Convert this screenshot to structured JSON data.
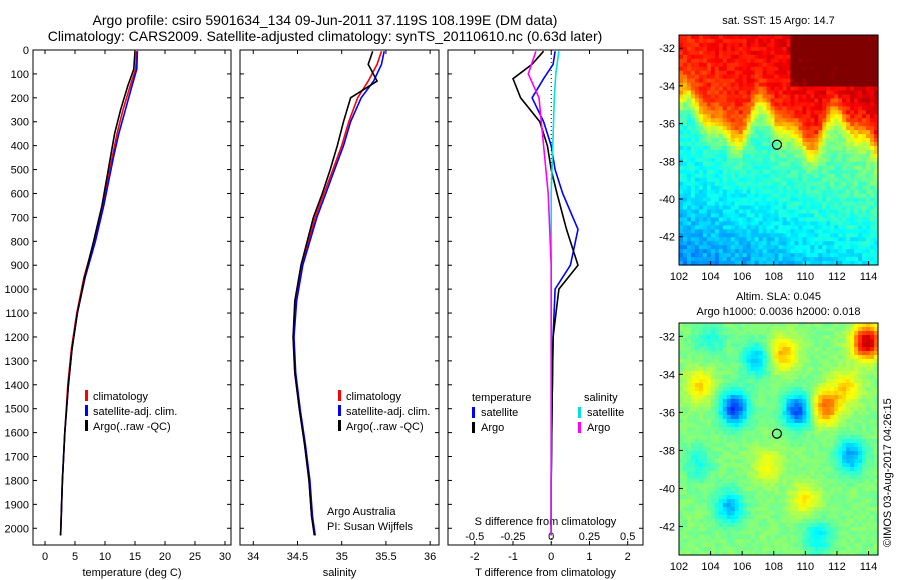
{
  "header": {
    "line1": "Argo profile: csiro 5901634_134 09-Jun-2011 37.119S 108.199E (DM data)",
    "line2": "Climatology: CARS2009. Satellite-adjusted climatology: synTS_20110610.nc (0.63d later)"
  },
  "footer": {
    "stamp": "©IMOS 03-Aug-2017 04:26:15"
  },
  "chart_data": [
    {
      "type": "line",
      "panel": "temperature",
      "xlabel": "temperature (deg C)",
      "ylabel": "",
      "xlim": [
        -2,
        31
      ],
      "ylim": [
        2070,
        0
      ],
      "xticks": [
        0,
        5,
        10,
        15,
        20,
        25,
        30
      ],
      "yticks": [
        0,
        100,
        200,
        300,
        400,
        500,
        600,
        700,
        800,
        900,
        1000,
        1100,
        1200,
        1300,
        1400,
        1500,
        1600,
        1700,
        1800,
        1900,
        2000
      ],
      "legend": [
        "climatology",
        "satellite-adj. clim.",
        "Argo(..raw -QC)"
      ],
      "legend_position": "lower-right",
      "series": [
        {
          "name": "climatology",
          "color": "#ff0000",
          "x": [
            15.3,
            15.1,
            14.2,
            13.0,
            12.0,
            11.2,
            10.4,
            9.6,
            8.2,
            6.5,
            5.3,
            4.4,
            3.8,
            3.3,
            2.9,
            2.6
          ],
          "y": [
            5,
            80,
            150,
            250,
            350,
            450,
            550,
            650,
            800,
            950,
            1100,
            1250,
            1400,
            1600,
            1800,
            2030
          ]
        },
        {
          "name": "satellite-adj. clim.",
          "color": "#0000ff",
          "x": [
            15.4,
            15.3,
            14.5,
            13.4,
            12.3,
            11.4,
            10.6,
            9.8,
            8.4,
            6.7,
            5.4,
            4.5,
            3.9,
            3.3,
            2.9,
            2.6
          ],
          "y": [
            5,
            80,
            150,
            250,
            350,
            450,
            550,
            650,
            800,
            950,
            1100,
            1250,
            1400,
            1600,
            1800,
            2030
          ]
        },
        {
          "name": "Argo(..raw -QC)",
          "color": "#000000",
          "x": [
            15.0,
            14.8,
            13.8,
            12.6,
            11.6,
            10.9,
            10.2,
            9.5,
            8.1,
            6.6,
            5.4,
            4.5,
            3.9,
            3.3,
            2.9,
            2.6
          ],
          "y": [
            5,
            80,
            150,
            250,
            350,
            450,
            550,
            650,
            800,
            950,
            1100,
            1250,
            1400,
            1600,
            1800,
            2030
          ]
        }
      ]
    },
    {
      "type": "line",
      "panel": "salinity",
      "xlabel": "salinity",
      "ylabel": "",
      "xlim": [
        33.85,
        36.1
      ],
      "ylim": [
        2070,
        0
      ],
      "xticks": [
        34,
        34.5,
        35,
        35.5,
        36
      ],
      "xticklabels": [
        "34",
        "34.5",
        "35",
        "35.5",
        "36"
      ],
      "legend": [
        "climatology",
        "satellite-adj. clim.",
        "Argo(..raw -QC)"
      ],
      "legend_position": "lower-right",
      "annotation": [
        "Argo Australia",
        "PI: Susan Wijffels"
      ],
      "series": [
        {
          "name": "climatology",
          "color": "#ff0000",
          "x": [
            35.45,
            35.4,
            35.3,
            35.18,
            35.08,
            35.0,
            34.9,
            34.8,
            34.7,
            34.55,
            34.48,
            34.45,
            34.47,
            34.52,
            34.58,
            34.63,
            34.66,
            34.7
          ],
          "y": [
            5,
            60,
            130,
            200,
            300,
            400,
            500,
            600,
            700,
            900,
            1050,
            1200,
            1350,
            1500,
            1650,
            1800,
            1950,
            2030
          ]
        },
        {
          "name": "satellite-adj. clim.",
          "color": "#0000ff",
          "x": [
            35.48,
            35.45,
            35.36,
            35.22,
            35.1,
            35.02,
            34.92,
            34.82,
            34.72,
            34.56,
            34.49,
            34.46,
            34.48,
            34.53,
            34.59,
            34.64,
            34.67,
            34.7
          ],
          "y": [
            5,
            60,
            130,
            200,
            300,
            400,
            500,
            600,
            700,
            900,
            1050,
            1200,
            1350,
            1500,
            1650,
            1800,
            1950,
            2030
          ]
        },
        {
          "name": "Argo(..raw -QC)",
          "color": "#000000",
          "x": [
            35.35,
            35.3,
            35.4,
            35.1,
            35.02,
            34.95,
            34.87,
            34.78,
            34.68,
            34.54,
            34.47,
            34.45,
            34.47,
            34.52,
            34.58,
            34.63,
            34.66,
            34.69
          ],
          "y": [
            5,
            60,
            130,
            200,
            300,
            400,
            500,
            600,
            700,
            900,
            1050,
            1200,
            1350,
            1500,
            1650,
            1800,
            1950,
            2030
          ]
        }
      ]
    },
    {
      "type": "line",
      "panel": "differences",
      "xlabel": "T difference from climatology",
      "xlabel2": "S difference from climatology",
      "xlim": [
        -2.7,
        2.4
      ],
      "ylim": [
        2070,
        0
      ],
      "xticks": [
        -2,
        -1,
        0,
        1,
        2
      ],
      "xticks2": [
        -0.5,
        -0.25,
        0,
        0.25,
        0.5
      ],
      "xticklabels2": [
        "-0.5",
        "-0.25",
        "0",
        "0.25",
        "0.5"
      ],
      "legend_groups": [
        {
          "heading": "temperature",
          "items": [
            {
              "name": "satellite",
              "color": "#0000ff"
            },
            {
              "name": "Argo",
              "color": "#000000"
            }
          ]
        },
        {
          "heading": "salinity",
          "items": [
            {
              "name": "satellite",
              "color": "#00e0e0"
            },
            {
              "name": "Argo",
              "color": "#ff00ff"
            }
          ]
        }
      ],
      "series": [
        {
          "name": "temperature satellite",
          "color": "#0000ff",
          "x": [
            0.1,
            0.05,
            -0.2,
            -0.5,
            -0.2,
            0.0,
            0.1,
            0.3,
            0.7,
            0.5,
            0.1,
            0.05,
            0.02,
            0.0,
            0.0
          ],
          "y": [
            5,
            60,
            120,
            200,
            300,
            400,
            500,
            600,
            750,
            900,
            1000,
            1200,
            1500,
            1800,
            2030
          ]
        },
        {
          "name": "temperature Argo",
          "color": "#000000",
          "x": [
            -0.2,
            -0.5,
            -1.0,
            -0.8,
            -0.3,
            -0.1,
            0.0,
            0.15,
            0.4,
            0.7,
            0.2,
            0.05,
            0.02,
            0.0,
            0.0
          ],
          "y": [
            5,
            60,
            120,
            200,
            300,
            400,
            500,
            600,
            750,
            900,
            1000,
            1200,
            1500,
            1800,
            2030
          ]
        },
        {
          "name": "salinity satellite",
          "color": "#00e0e0",
          "x": [
            0.05,
            0.03,
            0.02,
            0.01,
            0.0,
            0.0,
            0.0,
            0.0,
            0.0,
            0.0
          ],
          "y": [
            5,
            100,
            200,
            400,
            600,
            900,
            1200,
            1500,
            1800,
            2030
          ]
        },
        {
          "name": "salinity Argo",
          "color": "#ff00ff",
          "x": [
            -0.1,
            -0.15,
            -0.08,
            -0.05,
            -0.02,
            0.0,
            0.0,
            0.0,
            0.0,
            0.0
          ],
          "y": [
            5,
            100,
            200,
            400,
            600,
            900,
            1200,
            1500,
            1800,
            2030
          ]
        }
      ]
    },
    {
      "type": "heatmap",
      "panel": "sst-map",
      "title": "sat. SST: 15 Argo: 14.7",
      "xlim": [
        102,
        114.6
      ],
      "ylim": [
        -43.5,
        -31.3
      ],
      "xticks": [
        102,
        104,
        106,
        108,
        110,
        112,
        114
      ],
      "yticks": [
        -32,
        -34,
        -36,
        -38,
        -40,
        -42
      ],
      "marker": {
        "lon": 108.2,
        "lat": -37.12
      },
      "colorscale": "jet, warm (red) to the north, cool (blue) to the south"
    },
    {
      "type": "heatmap",
      "panel": "sla-map",
      "title": "Altim. SLA: 0.045",
      "subtitle": "Argo h1000: 0.0036 h2000: 0.018",
      "xlim": [
        102,
        114.6
      ],
      "ylim": [
        -43.5,
        -31.3
      ],
      "xticks": [
        102,
        104,
        106,
        108,
        110,
        112,
        114
      ],
      "yticks": [
        -32,
        -34,
        -36,
        -38,
        -40,
        -42
      ],
      "marker": {
        "lon": 108.2,
        "lat": -37.12
      },
      "colorscale": "jet, mostly green with blue and orange eddies"
    }
  ]
}
